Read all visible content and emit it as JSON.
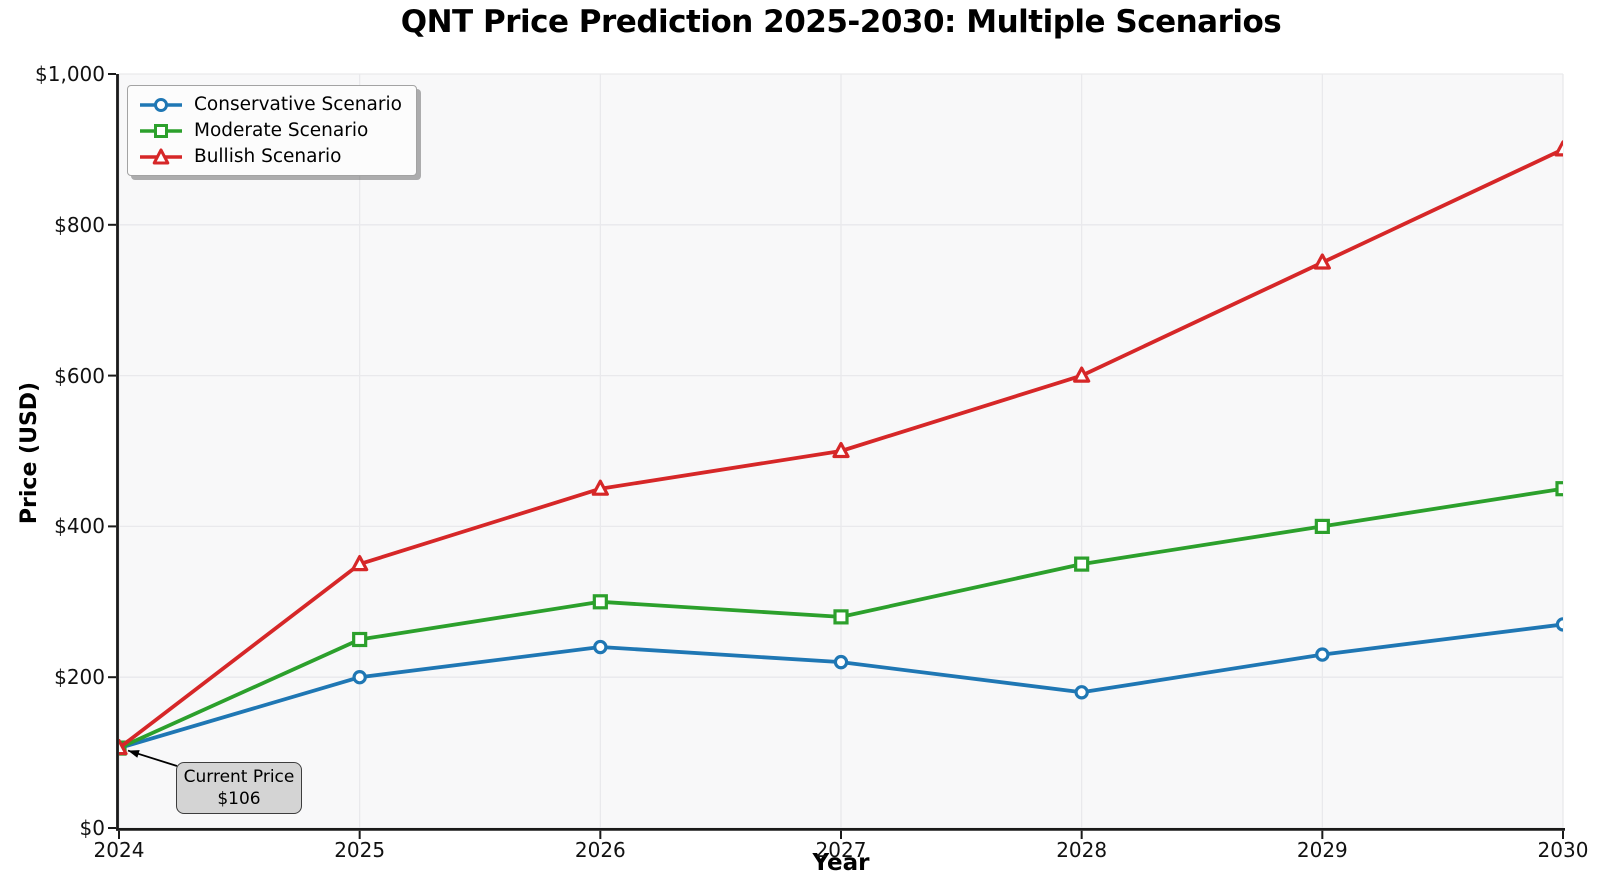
{
  "chart_data": {
    "type": "line",
    "title": "QNT Price Prediction 2025-2030: Multiple Scenarios",
    "xlabel": "Year",
    "ylabel": "Price (USD)",
    "x": [
      2024,
      2025,
      2026,
      2027,
      2028,
      2029,
      2030
    ],
    "x_tick_labels": [
      "2024",
      "2025",
      "2026",
      "2027",
      "2028",
      "2029",
      "2030"
    ],
    "xlim": [
      2024,
      2030
    ],
    "ylim": [
      0,
      1000
    ],
    "y_ticks": [
      {
        "value": 0,
        "label": "$0"
      },
      {
        "value": 200,
        "label": "$200"
      },
      {
        "value": 400,
        "label": "$400"
      },
      {
        "value": 600,
        "label": "$600"
      },
      {
        "value": 800,
        "label": "$800"
      },
      {
        "value": 1000,
        "label": "$1,000"
      }
    ],
    "grid": true,
    "legend_position": "upper left",
    "series": [
      {
        "name": "Conservative Scenario",
        "color": "#1f77b4",
        "marker": "circle",
        "values": [
          106,
          200,
          240,
          220,
          180,
          230,
          270
        ]
      },
      {
        "name": "Moderate Scenario",
        "color": "#2ca02c",
        "marker": "square",
        "values": [
          106,
          250,
          300,
          280,
          350,
          400,
          450
        ]
      },
      {
        "name": "Bullish Scenario",
        "color": "#d62728",
        "marker": "triangle",
        "values": [
          106,
          350,
          450,
          500,
          600,
          750,
          900
        ]
      }
    ],
    "annotation": {
      "line1": "Current Price",
      "line2": "$106",
      "target_x": 2024,
      "target_y": 106
    }
  }
}
